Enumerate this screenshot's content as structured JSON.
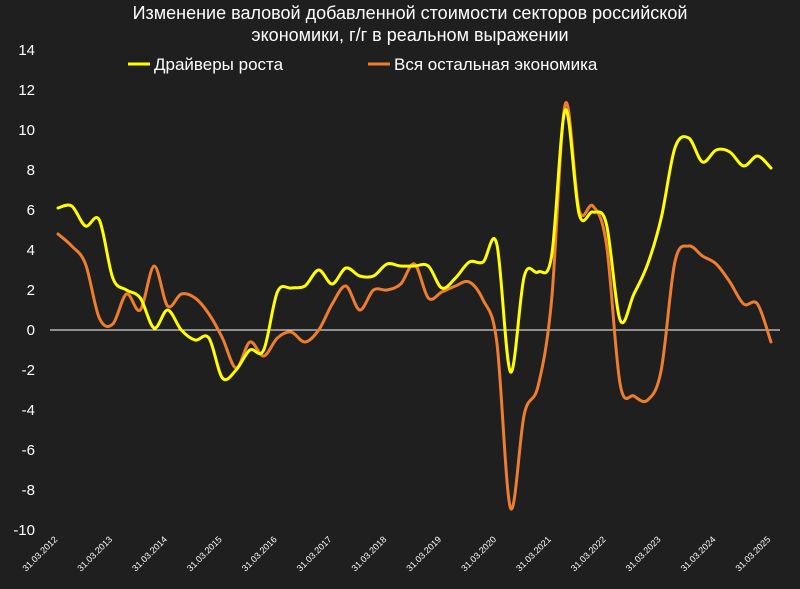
{
  "chart_data": {
    "type": "line",
    "title": "Изменение валовой добавленной стоимости секторов российской экономики, г/г в реальном выражении",
    "title_lines": [
      "Изменение валовой добавленной стоимости секторов российской",
      "экономики, г/г в реальном выражении"
    ],
    "xlabel": "",
    "ylabel": "",
    "ylim": [
      -10,
      14
    ],
    "yticks": [
      "14",
      "12",
      "10",
      "8",
      "6",
      "4",
      "2",
      "0",
      "-2",
      "-4",
      "-6",
      "-8",
      "-10"
    ],
    "xlim": [
      "2012-03-31",
      "2025-03-31"
    ],
    "xticks": [
      "31.03.2012",
      "31.03.2013",
      "31.03.2014",
      "31.03.2015",
      "31.03.2016",
      "31.03.2017",
      "31.03.2018",
      "31.03.2019",
      "31.03.2020",
      "31.03.2021",
      "31.03.2022",
      "31.03.2023",
      "31.03.2024",
      "31.03.2025"
    ],
    "grid": false,
    "zero_line": true,
    "legend_position": "top",
    "series": [
      {
        "name": "Драйверы роста",
        "color": "#ffff00",
        "x": [
          "2012-03-31",
          "2012-06-30",
          "2012-09-30",
          "2012-12-31",
          "2013-03-31",
          "2013-06-30",
          "2013-09-30",
          "2013-12-31",
          "2014-03-31",
          "2014-06-30",
          "2014-09-30",
          "2014-12-31",
          "2015-03-31",
          "2015-06-30",
          "2015-09-30",
          "2015-12-31",
          "2016-03-31",
          "2016-06-30",
          "2016-09-30",
          "2016-12-31",
          "2017-03-31",
          "2017-06-30",
          "2017-09-30",
          "2017-12-31",
          "2018-03-31",
          "2018-06-30",
          "2018-09-30",
          "2018-12-31",
          "2019-03-31",
          "2019-06-30",
          "2019-09-30",
          "2019-12-31",
          "2020-03-31",
          "2020-06-30",
          "2020-09-30",
          "2020-12-31",
          "2021-03-31",
          "2021-06-30",
          "2021-09-30",
          "2021-12-31",
          "2022-03-31",
          "2022-06-30",
          "2022-09-30",
          "2022-12-31",
          "2023-03-31",
          "2023-06-30",
          "2023-09-30",
          "2023-12-31",
          "2024-03-31",
          "2024-06-30",
          "2024-09-30",
          "2024-12-31",
          "2025-03-31"
        ],
        "y": [
          6.1,
          6.2,
          5.2,
          5.5,
          2.6,
          2.0,
          1.6,
          0.1,
          1.0,
          0.0,
          -0.5,
          -0.4,
          -2.4,
          -2.0,
          -1.0,
          -1.0,
          1.9,
          2.1,
          2.2,
          3.0,
          2.3,
          3.1,
          2.7,
          2.7,
          3.3,
          3.2,
          3.2,
          3.2,
          2.1,
          2.6,
          3.4,
          3.4,
          4.3,
          -2.1,
          2.7,
          2.9,
          3.7,
          11.0,
          5.8,
          5.9,
          5.3,
          0.5,
          1.8,
          3.3,
          5.6,
          9.1,
          9.6,
          8.4,
          9.0,
          8.9,
          8.2,
          8.7,
          8.1
        ]
      },
      {
        "name": "Вся остальная экономика",
        "color": "#ed7d31",
        "x": [
          "2012-03-31",
          "2012-06-30",
          "2012-09-30",
          "2012-12-31",
          "2013-03-31",
          "2013-06-30",
          "2013-09-30",
          "2013-12-31",
          "2014-03-31",
          "2014-06-30",
          "2014-09-30",
          "2014-12-31",
          "2015-03-31",
          "2015-06-30",
          "2015-09-30",
          "2015-12-31",
          "2016-03-31",
          "2016-06-30",
          "2016-09-30",
          "2016-12-31",
          "2017-03-31",
          "2017-06-30",
          "2017-09-30",
          "2017-12-31",
          "2018-03-31",
          "2018-06-30",
          "2018-09-30",
          "2018-12-31",
          "2019-03-31",
          "2019-06-30",
          "2019-09-30",
          "2019-12-31",
          "2020-03-31",
          "2020-06-30",
          "2020-09-30",
          "2020-12-31",
          "2021-03-31",
          "2021-06-30",
          "2021-09-30",
          "2021-12-31",
          "2022-03-31",
          "2022-06-30",
          "2022-09-30",
          "2022-12-31",
          "2023-03-31",
          "2023-06-30",
          "2023-09-30",
          "2023-12-31",
          "2024-03-31",
          "2024-06-30",
          "2024-09-30",
          "2024-12-31",
          "2025-03-31"
        ],
        "y": [
          4.8,
          4.2,
          3.3,
          0.6,
          0.3,
          1.8,
          1.0,
          3.2,
          1.2,
          1.8,
          1.6,
          0.8,
          -0.4,
          -1.9,
          -0.6,
          -1.3,
          -0.4,
          -0.1,
          -0.6,
          0.0,
          1.3,
          2.2,
          1.0,
          2.0,
          2.0,
          2.3,
          3.3,
          1.6,
          1.9,
          2.2,
          2.4,
          1.5,
          -0.6,
          -8.9,
          -4.2,
          -2.8,
          1.5,
          11.3,
          6.0,
          6.2,
          4.3,
          -2.7,
          -3.3,
          -3.5,
          -2.0,
          3.4,
          4.2,
          3.7,
          3.3,
          2.4,
          1.3,
          1.3,
          -0.6
        ]
      }
    ]
  }
}
